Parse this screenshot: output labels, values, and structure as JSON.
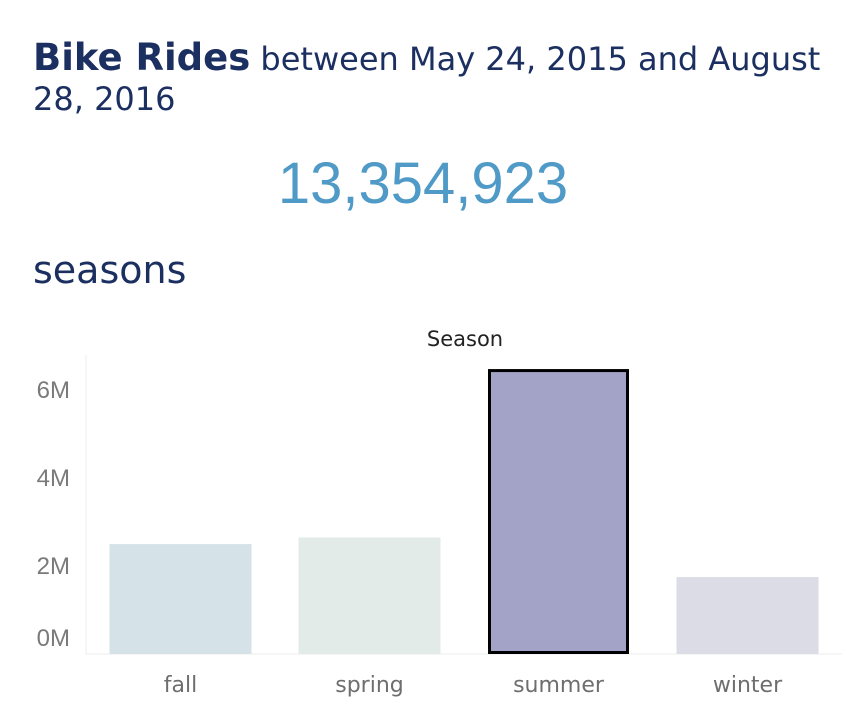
{
  "header": {
    "title_bold": "Bike Rides",
    "title_rest": "between May 24, 2015 and August 28, 2016"
  },
  "total_rides": "13,354,923",
  "section_title": "seasons",
  "chart_data": {
    "type": "bar",
    "title": "Season",
    "categories": [
      "fall",
      "spring",
      "summer",
      "winter"
    ],
    "values": [
      2500000,
      2650000,
      6480000,
      1750000
    ],
    "colors": [
      "#d5e3e8",
      "#e3ebe9",
      "#a3a2c7",
      "#dcdce6"
    ],
    "highlighted": "summer",
    "ylim": [
      0,
      6800000
    ],
    "yticks": [
      {
        "value": 0,
        "label": "0M"
      },
      {
        "value": 2000000,
        "label": "2M"
      },
      {
        "value": 4000000,
        "label": "4M"
      },
      {
        "value": 6000000,
        "label": "6M"
      }
    ],
    "xlabel": "",
    "ylabel": ""
  }
}
